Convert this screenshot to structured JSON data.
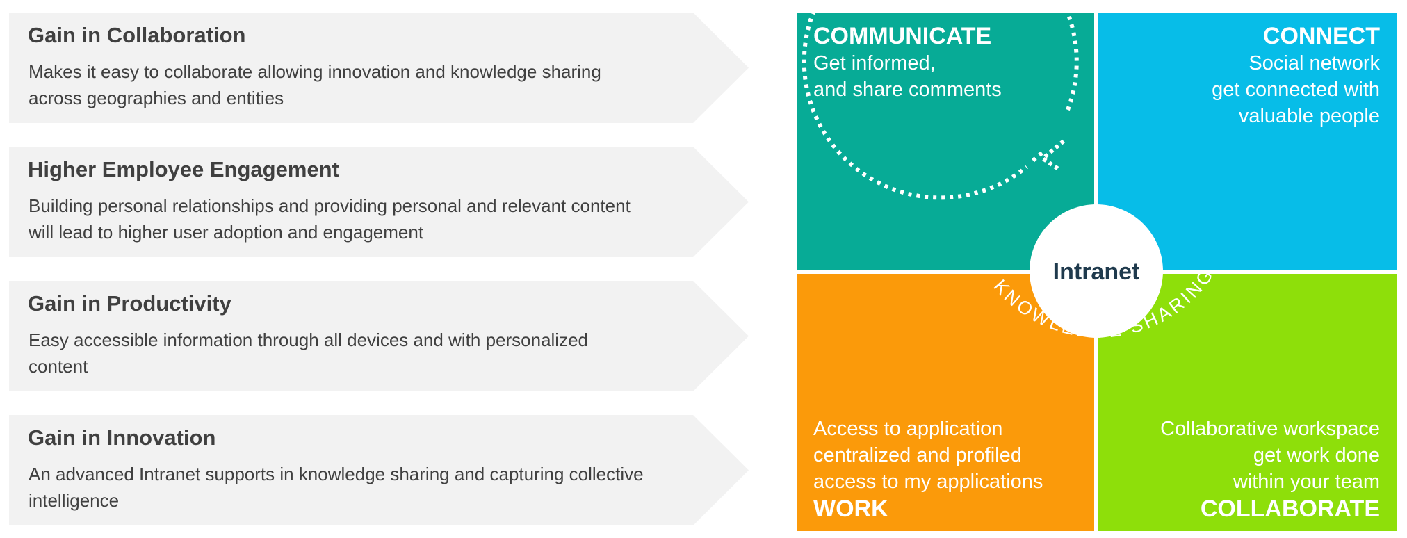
{
  "benefits": [
    {
      "title": "Gain in Collaboration",
      "lines": [
        "Makes it easy to collaborate allowing innovation and knowledge sharing",
        "across geographies and entities"
      ]
    },
    {
      "title": "Higher Employee Engagement",
      "lines": [
        "Building personal relationships and providing personal and relevant content",
        "will lead to higher user adoption and engagement"
      ]
    },
    {
      "title": "Gain in Productivity",
      "lines": [
        "Easy accessible information through all devices and with personalized",
        "content"
      ]
    },
    {
      "title": "Gain in Innovation",
      "lines": [
        "An advanced Intranet supports in knowledge sharing and capturing collective",
        "intelligence"
      ]
    }
  ],
  "quadrants": {
    "communicate": {
      "heading": "COMMUNICATE",
      "lines": [
        "Get informed,",
        "and share comments"
      ],
      "color": "#07ab96"
    },
    "connect": {
      "heading": "CONNECT",
      "lines": [
        "Social network",
        "get connected with",
        "valuable people"
      ],
      "color": "#07bde8"
    },
    "work": {
      "heading": "WORK",
      "lines": [
        "Access to application",
        "centralized and profiled",
        "access to my applications"
      ],
      "color": "#fb9a0a"
    },
    "collaborate": {
      "heading": "COLLABORATE",
      "lines": [
        "Collaborative workspace",
        "get work done",
        "within your team"
      ],
      "color": "#8edf0a"
    }
  },
  "center": {
    "label": "Intranet"
  },
  "cycle": {
    "label": "KNOWLEDGE SHARING"
  },
  "colors": {
    "arrow_background": "#f2f2f2",
    "text_dark": "#404040",
    "center_text": "#1f3a4d"
  }
}
